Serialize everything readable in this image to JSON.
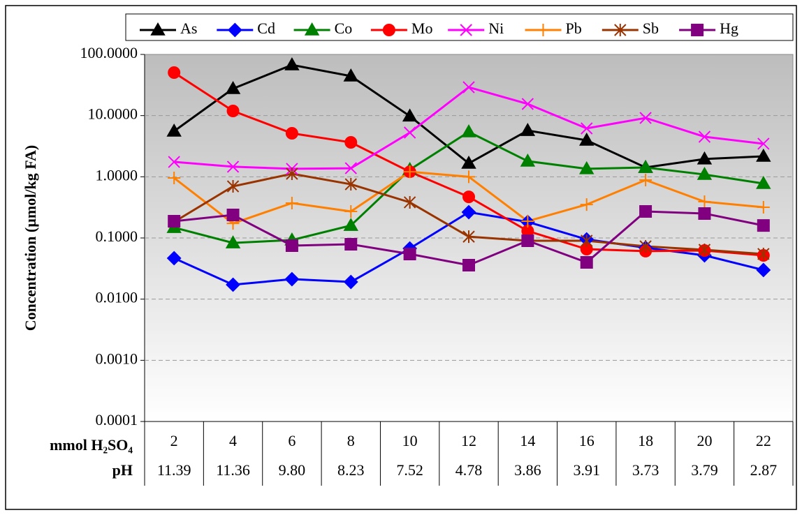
{
  "chart_data": {
    "type": "line",
    "y_label": "Concentration (µmol/kg FA)",
    "x_row_label": "mmol H₂SO₄",
    "x2_row_label": "pH",
    "categories": [
      "2",
      "4",
      "6",
      "8",
      "10",
      "12",
      "14",
      "16",
      "18",
      "20",
      "22"
    ],
    "x2_categories": [
      "11.39",
      "11.36",
      "9.80",
      "8.23",
      "7.52",
      "4.78",
      "3.86",
      "3.91",
      "3.73",
      "3.79",
      "2.87"
    ],
    "log_y": true,
    "grid": true,
    "legend": "top",
    "ylim": [
      0.0001,
      100
    ],
    "yticks": [
      {
        "value": 100,
        "label": "100.0000"
      },
      {
        "value": 10,
        "label": "10.0000"
      },
      {
        "value": 1,
        "label": "1.0000"
      },
      {
        "value": 0.1,
        "label": "0.1000"
      },
      {
        "value": 0.01,
        "label": "0.0100"
      },
      {
        "value": 0.001,
        "label": "0.0010"
      },
      {
        "value": 0.0001,
        "label": "0.0001"
      }
    ],
    "series": [
      {
        "name": "As",
        "color": "#000000",
        "marker": "triangle",
        "values": [
          5.56,
          27.6,
          67.4,
          44.3,
          9.8,
          1.66,
          5.7,
          3.95,
          1.42,
          1.95,
          2.16
        ]
      },
      {
        "name": "Cd",
        "color": "#0000ff",
        "marker": "diamond",
        "values": [
          0.0467,
          0.0172,
          0.0212,
          0.0191,
          0.0674,
          0.264,
          0.183,
          0.0948,
          0.0692,
          0.0519,
          0.0299
        ]
      },
      {
        "name": "Co",
        "color": "#008000",
        "marker": "triangle",
        "values": [
          0.148,
          0.083,
          0.0925,
          0.16,
          1.31,
          5.42,
          1.8,
          1.35,
          1.42,
          1.09,
          0.776
        ]
      },
      {
        "name": "Mo",
        "color": "#ff0000",
        "marker": "circle",
        "values": [
          50.5,
          11.9,
          5.14,
          3.65,
          1.21,
          0.47,
          0.13,
          0.0656,
          0.0609,
          0.0624,
          0.0519
        ]
      },
      {
        "name": "Ni",
        "color": "#ff00ff",
        "marker": "x",
        "values": [
          1.75,
          1.46,
          1.35,
          1.38,
          5.28,
          29.1,
          15.5,
          6.18,
          9.16,
          4.51,
          3.47
        ]
      },
      {
        "name": "Pb",
        "color": "#ff7f00",
        "marker": "plus",
        "values": [
          0.957,
          0.173,
          0.372,
          0.271,
          1.21,
          1.0,
          0.188,
          0.352,
          0.885,
          0.392,
          0.318
        ]
      },
      {
        "name": "Sb",
        "color": "#993300",
        "marker": "star",
        "values": [
          0.183,
          0.698,
          1.12,
          0.755,
          0.382,
          0.105,
          0.09,
          0.09,
          0.073,
          0.064,
          0.0547
        ]
      },
      {
        "name": "Hg",
        "color": "#800080",
        "marker": "square",
        "values": [
          0.188,
          0.238,
          0.0749,
          0.0789,
          0.0547,
          0.0359,
          0.09,
          0.0399,
          0.271,
          0.251,
          0.16
        ]
      }
    ]
  }
}
